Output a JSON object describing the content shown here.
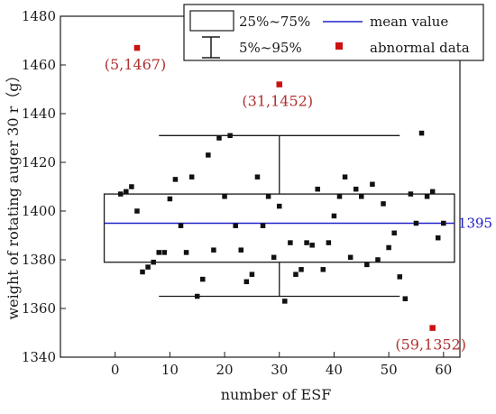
{
  "chart_data": {
    "type": "scatter",
    "overlay": "box-whisker",
    "xlabel": "number of ESF",
    "ylabel": "weight of rotating auger 30 r（g）",
    "xlim": [
      -10,
      63
    ],
    "ylim": [
      1340,
      1480
    ],
    "x_ticks": [
      0,
      10,
      20,
      30,
      40,
      50,
      60
    ],
    "y_ticks": [
      1340,
      1360,
      1380,
      1400,
      1420,
      1440,
      1460,
      1480
    ],
    "grid": false,
    "legend_position": "top-right",
    "legend": {
      "box": "25%~75%",
      "whisker": "5%~95%",
      "mean": "mean value",
      "abnormal": "abnormal data"
    },
    "box": {
      "x_range": [
        -2,
        62
      ],
      "q1": 1379,
      "q3": 1407,
      "mean": 1395,
      "p5": 1365,
      "p95": 1431,
      "whisker_cap_range": [
        8,
        52
      ],
      "whisker_x": 30
    },
    "mean_label": "1395",
    "points": [
      [
        1,
        1407
      ],
      [
        2,
        1408
      ],
      [
        3,
        1410
      ],
      [
        4,
        1400
      ],
      [
        5,
        1375
      ],
      [
        6,
        1377
      ],
      [
        7,
        1379
      ],
      [
        8,
        1383
      ],
      [
        9,
        1383
      ],
      [
        10,
        1405
      ],
      [
        11,
        1413
      ],
      [
        12,
        1394
      ],
      [
        13,
        1383
      ],
      [
        14,
        1414
      ],
      [
        15,
        1365
      ],
      [
        16,
        1372
      ],
      [
        17,
        1423
      ],
      [
        18,
        1384
      ],
      [
        19,
        1430
      ],
      [
        20,
        1406
      ],
      [
        21,
        1431
      ],
      [
        22,
        1394
      ],
      [
        23,
        1384
      ],
      [
        24,
        1371
      ],
      [
        25,
        1374
      ],
      [
        26,
        1414
      ],
      [
        27,
        1394
      ],
      [
        28,
        1406
      ],
      [
        29,
        1381
      ],
      [
        30,
        1402
      ],
      [
        31,
        1363
      ],
      [
        32,
        1387
      ],
      [
        33,
        1374
      ],
      [
        34,
        1376
      ],
      [
        35,
        1387
      ],
      [
        36,
        1386
      ],
      [
        37,
        1409
      ],
      [
        38,
        1376
      ],
      [
        39,
        1387
      ],
      [
        40,
        1398
      ],
      [
        41,
        1406
      ],
      [
        42,
        1414
      ],
      [
        43,
        1381
      ],
      [
        44,
        1409
      ],
      [
        45,
        1406
      ],
      [
        46,
        1378
      ],
      [
        47,
        1411
      ],
      [
        48,
        1380
      ],
      [
        49,
        1403
      ],
      [
        50,
        1385
      ],
      [
        51,
        1391
      ],
      [
        52,
        1373
      ],
      [
        53,
        1364
      ],
      [
        54,
        1407
      ],
      [
        55,
        1395
      ],
      [
        56,
        1432
      ],
      [
        57,
        1406
      ],
      [
        58,
        1408
      ],
      [
        59,
        1389
      ],
      [
        60,
        1395
      ]
    ],
    "abnormal_points": [
      {
        "x": 4,
        "y": 1467,
        "label": "(5,1467)"
      },
      {
        "x": 30,
        "y": 1452,
        "label": "(31,1452)"
      },
      {
        "x": 58,
        "y": 1352,
        "label": "(59,1352)"
      }
    ]
  },
  "colors": {
    "axis": "#1a1a1a",
    "point": "#111111",
    "mean_line": "#2222cc",
    "abnormal": "#cc1111",
    "annotation": "#b03030"
  }
}
